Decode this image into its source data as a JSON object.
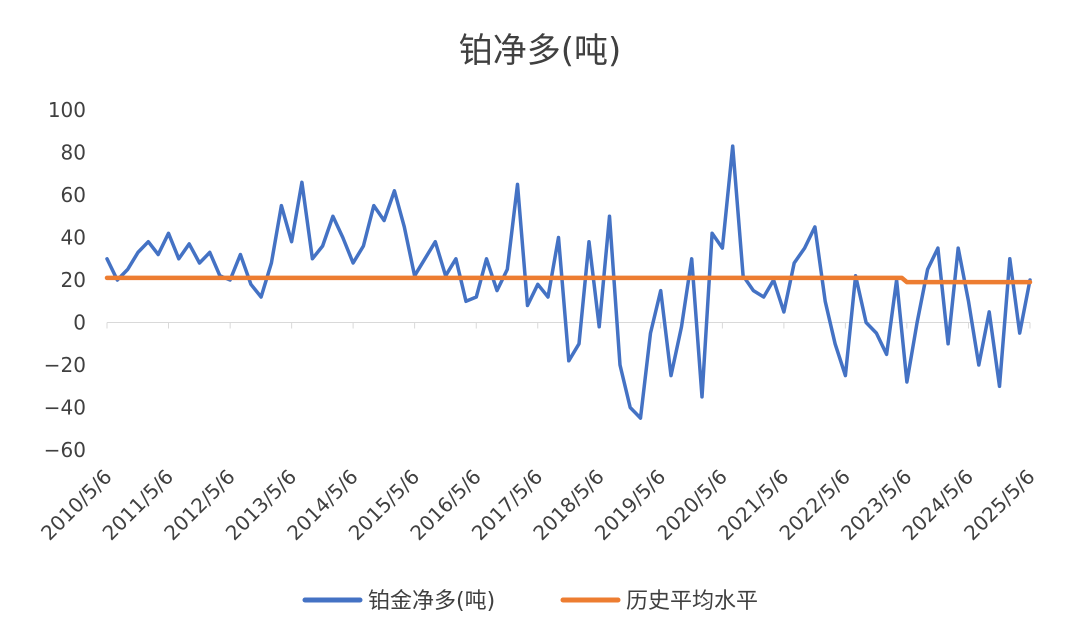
{
  "chart_data": {
    "type": "line",
    "title": "铂净多(吨)",
    "ylim": [
      -60,
      100
    ],
    "yticks": [
      100,
      80,
      60,
      40,
      20,
      0,
      -20,
      -40,
      -60
    ],
    "xlim": [
      "2010/5/6",
      "2025/5/6"
    ],
    "xtick_labels": [
      "2010/5/6",
      "2011/5/6",
      "2012/5/6",
      "2013/5/6",
      "2014/5/6",
      "2015/5/6",
      "2016/5/6",
      "2017/5/6",
      "2018/5/6",
      "2019/5/6",
      "2020/5/6",
      "2021/5/6",
      "2022/5/6",
      "2023/5/6",
      "2024/5/6",
      "2025/5/6"
    ],
    "legend_position": "bottom",
    "series": [
      {
        "name": "铂金净多(吨)",
        "color": "#4472C4",
        "x": [
          "2010/5/6",
          "2010/7/6",
          "2010/9/6",
          "2010/11/6",
          "2011/1/6",
          "2011/3/6",
          "2011/5/6",
          "2011/7/6",
          "2011/9/6",
          "2011/11/6",
          "2012/1/6",
          "2012/3/6",
          "2012/5/6",
          "2012/7/6",
          "2012/9/6",
          "2012/11/6",
          "2013/1/6",
          "2013/3/6",
          "2013/5/6",
          "2013/7/6",
          "2013/9/6",
          "2013/11/6",
          "2014/1/6",
          "2014/3/6",
          "2014/5/6",
          "2014/7/6",
          "2014/9/6",
          "2014/11/6",
          "2015/1/6",
          "2015/3/6",
          "2015/5/6",
          "2015/7/6",
          "2015/9/6",
          "2015/11/6",
          "2016/1/6",
          "2016/3/6",
          "2016/5/6",
          "2016/7/6",
          "2016/9/6",
          "2016/11/6",
          "2017/1/6",
          "2017/3/6",
          "2017/5/6",
          "2017/7/6",
          "2017/9/6",
          "2017/11/6",
          "2018/1/6",
          "2018/3/6",
          "2018/5/6",
          "2018/7/6",
          "2018/9/6",
          "2018/11/6",
          "2019/1/6",
          "2019/3/6",
          "2019/5/6",
          "2019/7/6",
          "2019/9/6",
          "2019/11/6",
          "2020/1/6",
          "2020/3/6",
          "2020/5/6",
          "2020/7/6",
          "2020/9/6",
          "2020/11/6",
          "2021/1/6",
          "2021/3/6",
          "2021/5/6",
          "2021/7/6",
          "2021/9/6",
          "2021/11/6",
          "2022/1/6",
          "2022/3/6",
          "2022/5/6",
          "2022/7/6",
          "2022/9/6",
          "2022/11/6",
          "2023/1/6",
          "2023/3/6",
          "2023/5/6",
          "2023/7/6",
          "2023/9/6",
          "2023/11/6",
          "2024/1/6",
          "2024/3/6",
          "2024/5/6",
          "2024/7/6",
          "2024/9/6",
          "2024/11/6",
          "2025/1/6",
          "2025/3/6",
          "2025/5/6"
        ],
        "values": [
          30,
          20,
          25,
          33,
          38,
          32,
          42,
          30,
          37,
          28,
          33,
          22,
          20,
          32,
          18,
          12,
          28,
          55,
          38,
          66,
          30,
          36,
          50,
          40,
          28,
          36,
          55,
          48,
          62,
          45,
          22,
          30,
          38,
          22,
          30,
          10,
          12,
          30,
          15,
          25,
          65,
          8,
          18,
          12,
          40,
          -18,
          -10,
          38,
          -2,
          50,
          -20,
          -40,
          -45,
          -5,
          15,
          -25,
          -2,
          30,
          -35,
          42,
          35,
          83,
          22,
          15,
          12,
          20,
          5,
          28,
          35,
          45,
          10,
          -10,
          -25,
          22,
          0,
          -5,
          -15,
          20,
          -28,
          0,
          25,
          35,
          -10,
          35,
          10,
          -20,
          5,
          -30,
          30,
          -5,
          20
        ]
      },
      {
        "name": "历史平均水平",
        "color": "#ED7D31",
        "x": [
          "2010/5/6",
          "2023/4/6",
          "2023/5/6",
          "2025/5/6"
        ],
        "values": [
          21,
          21,
          19,
          19
        ]
      }
    ]
  }
}
